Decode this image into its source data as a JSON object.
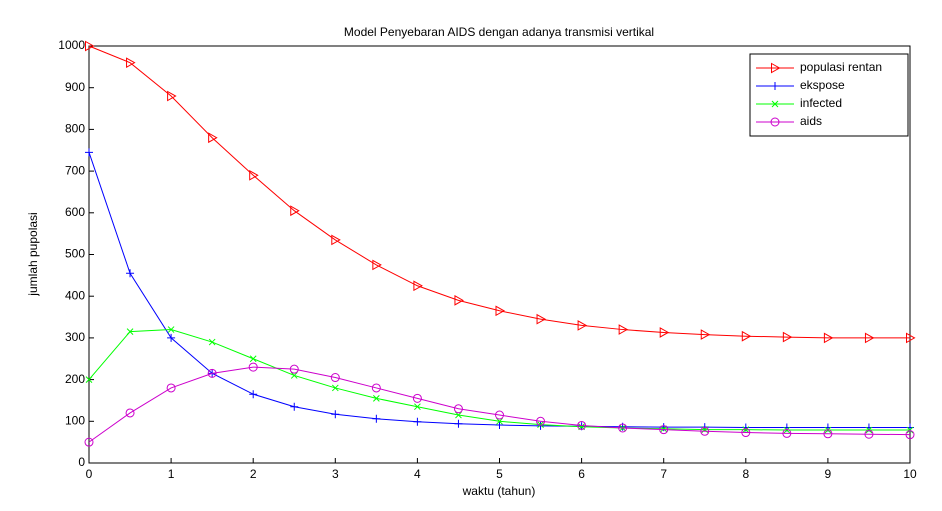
{
  "chart_data": {
    "type": "line",
    "title": "Model Penyebaran AIDS dengan adanya transmisi vertikal",
    "x_label": "waktu (tahun)",
    "y_label": "jumlah pupolasi",
    "x": [
      0,
      0.5,
      1,
      1.5,
      2,
      2.5,
      3,
      3.5,
      4,
      4.5,
      5,
      5.5,
      6,
      6.5,
      7,
      7.5,
      8,
      8.5,
      9,
      9.5,
      10
    ],
    "series": [
      {
        "name": "populasi rentan",
        "color": "#ff0000",
        "marker": "triangle-right",
        "values": [
          1000,
          960,
          880,
          780,
          690,
          605,
          535,
          475,
          425,
          390,
          365,
          345,
          330,
          320,
          313,
          308,
          304,
          302,
          300,
          300,
          300
        ]
      },
      {
        "name": "ekspose",
        "color": "#0000ff",
        "marker": "plus",
        "values": [
          745,
          455,
          300,
          215,
          165,
          135,
          117,
          106,
          99,
          94,
          91,
          89,
          88,
          87,
          86,
          86,
          85,
          85,
          85,
          85,
          85
        ]
      },
      {
        "name": "infected",
        "color": "#00ff00",
        "marker": "x",
        "values": [
          200,
          315,
          320,
          290,
          250,
          210,
          180,
          155,
          135,
          115,
          100,
          92,
          87,
          84,
          82,
          80,
          80,
          79,
          79,
          79,
          79
        ]
      },
      {
        "name": "aids",
        "color": "#cc00cc",
        "marker": "circle",
        "values": [
          50,
          120,
          180,
          215,
          230,
          225,
          205,
          180,
          155,
          130,
          115,
          100,
          90,
          84,
          80,
          76,
          73,
          71,
          70,
          69,
          68
        ]
      }
    ],
    "xlim": [
      0,
      10
    ],
    "xticks": [
      0,
      1,
      2,
      3,
      4,
      5,
      6,
      7,
      8,
      9,
      10
    ],
    "ylim": [
      0,
      1000
    ],
    "yticks": [
      0,
      100,
      200,
      300,
      400,
      500,
      600,
      700,
      800,
      900,
      1000
    ],
    "grid": false,
    "legend": "upper right"
  }
}
